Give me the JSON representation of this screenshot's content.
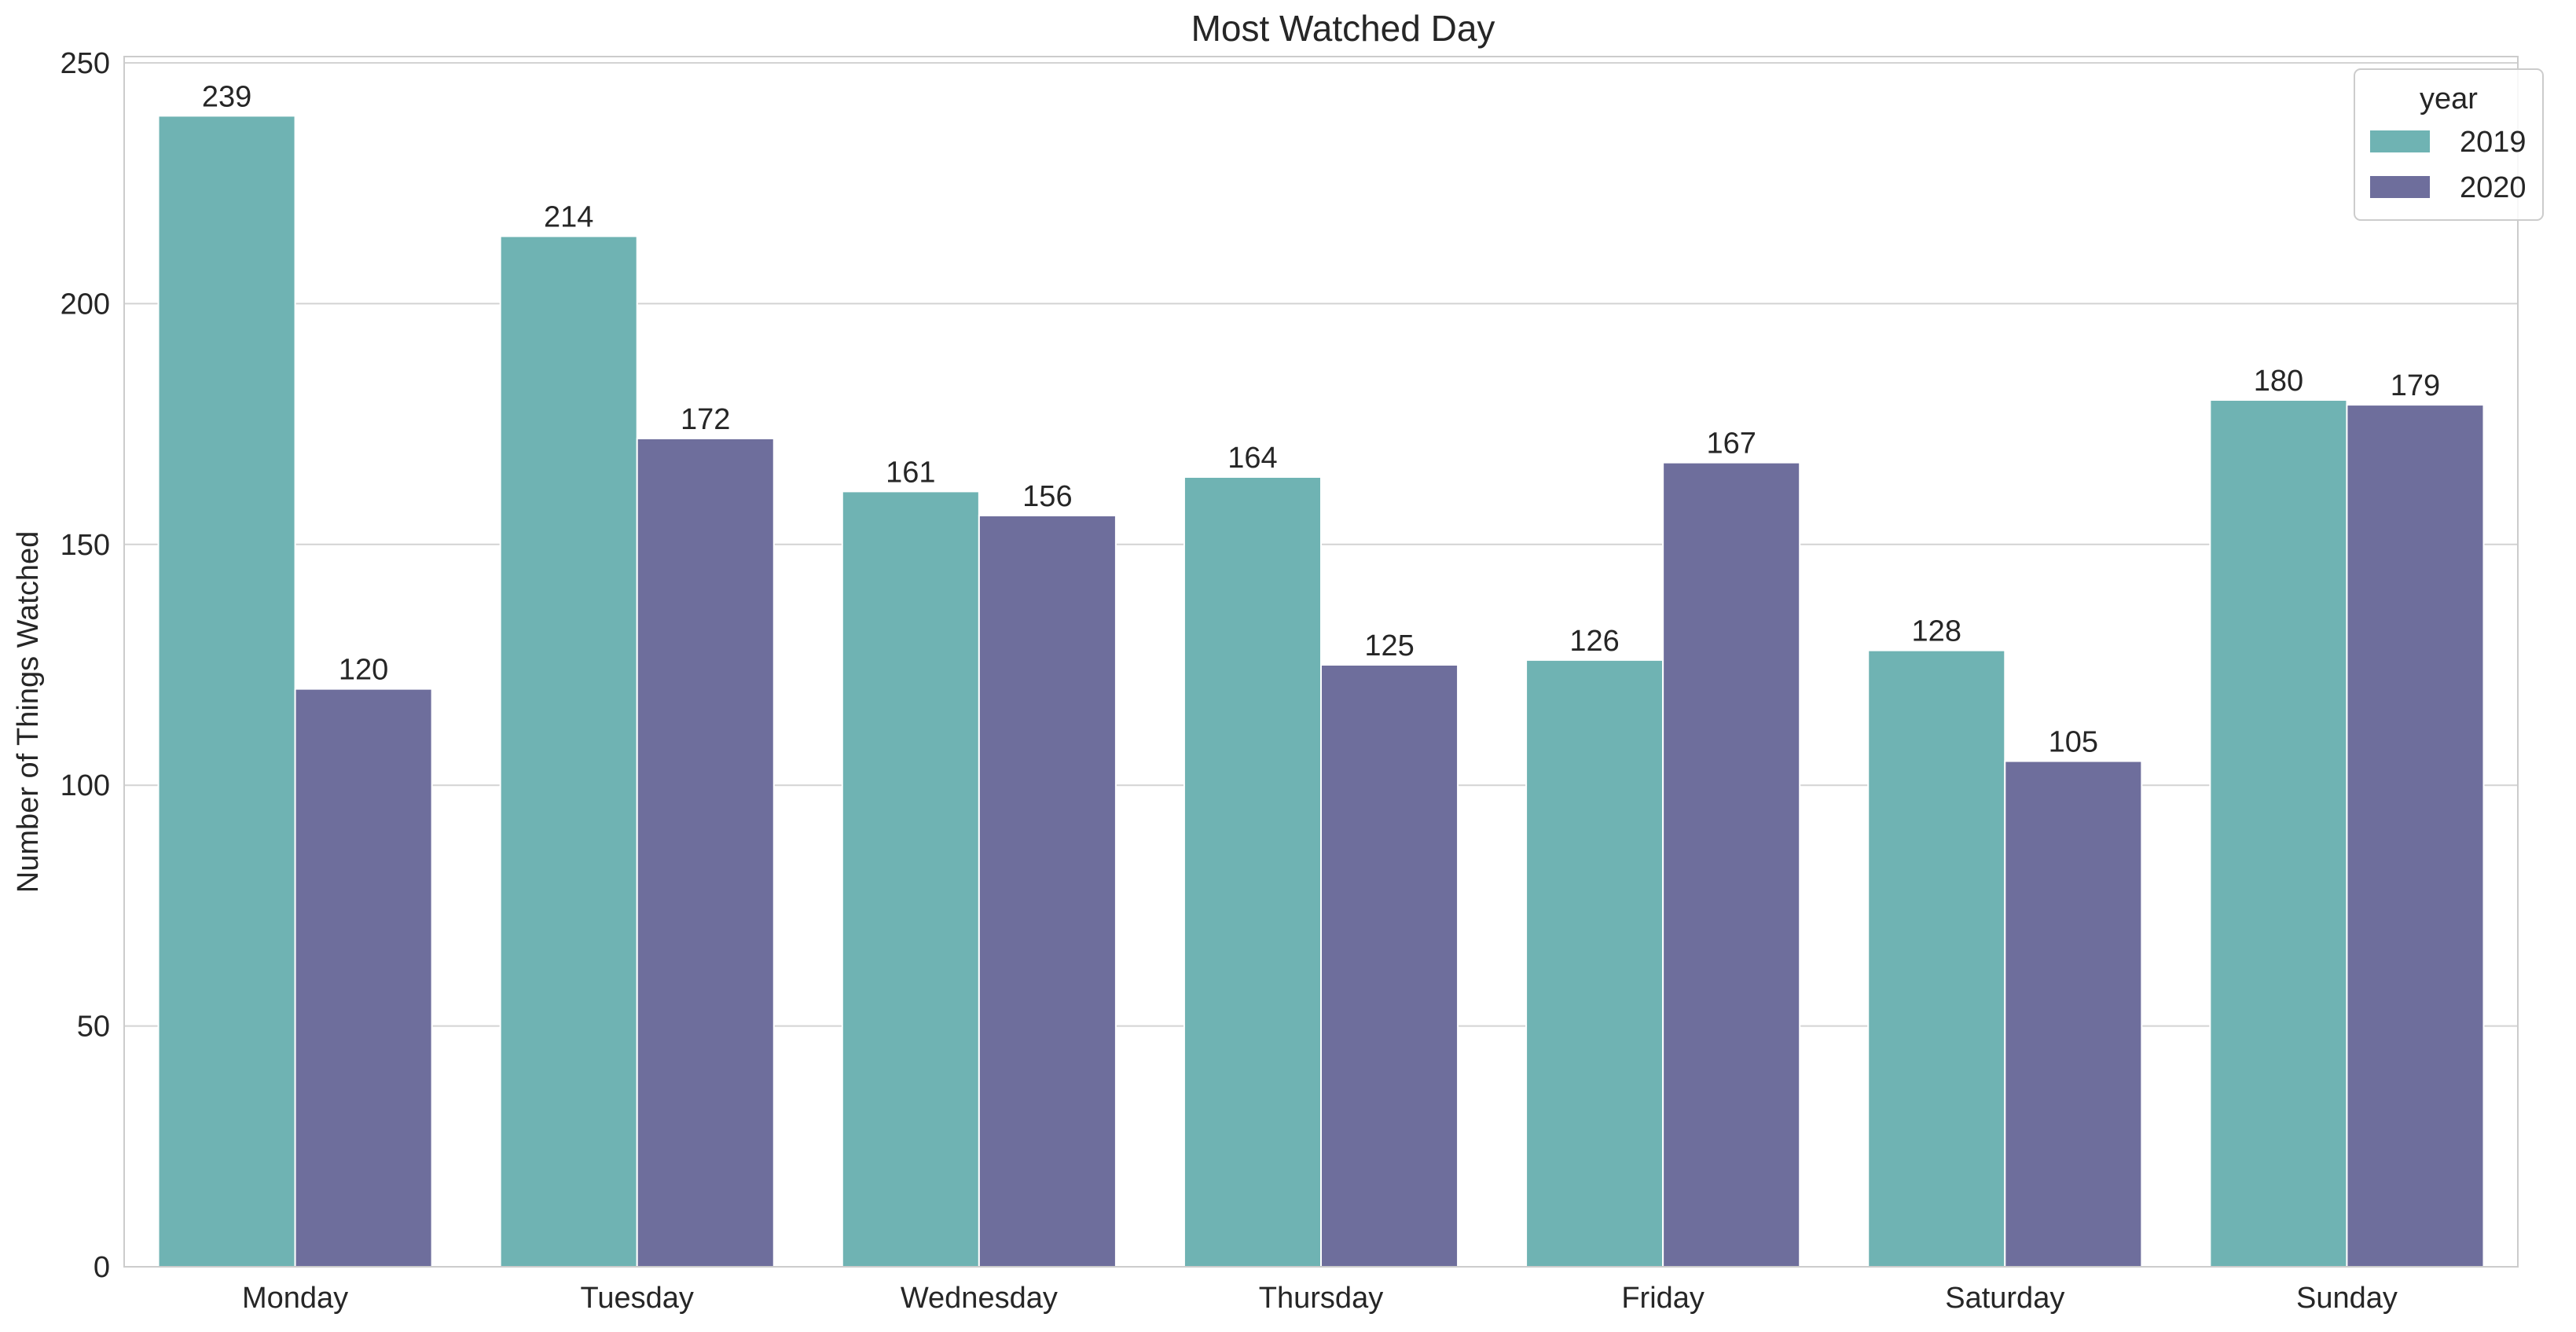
{
  "chart_data": {
    "type": "bar",
    "title": "Most Watched Day",
    "xlabel": "",
    "ylabel": "Number of Things Watched",
    "categories": [
      "Monday",
      "Tuesday",
      "Wednesday",
      "Thursday",
      "Friday",
      "Saturday",
      "Sunday"
    ],
    "series": [
      {
        "name": "2019",
        "color": "#6fb3b3",
        "values": [
          239,
          214,
          161,
          164,
          126,
          128,
          180
        ]
      },
      {
        "name": "2020",
        "color": "#6e6e9c",
        "values": [
          120,
          172,
          156,
          125,
          167,
          105,
          179
        ]
      }
    ],
    "ylim": [
      0,
      250
    ],
    "yticks": [
      0,
      50,
      100,
      150,
      200,
      250
    ],
    "grid": true,
    "legend": {
      "title": "year",
      "position": "top-right"
    }
  }
}
